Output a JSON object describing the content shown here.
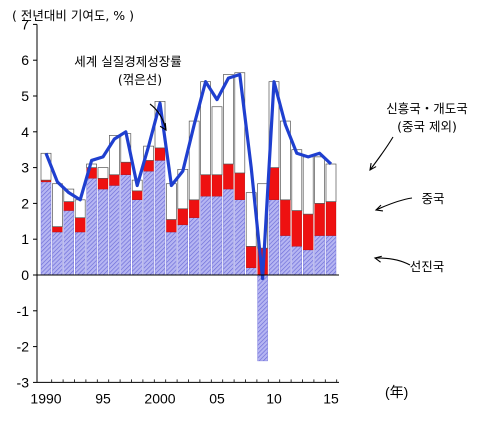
{
  "chart_data": {
    "type": "bar",
    "title": "",
    "unit_label": "( 전년대비 기여도, % )",
    "year_suffix": "(年)",
    "ylim": [
      -3,
      7
    ],
    "yticks": [
      -3,
      -2,
      -1,
      0,
      1,
      2,
      3,
      4,
      5,
      6,
      7
    ],
    "x": [
      1990,
      1991,
      1992,
      1993,
      1994,
      1995,
      1996,
      1997,
      1998,
      1999,
      2000,
      2001,
      2002,
      2003,
      2004,
      2005,
      2006,
      2007,
      2008,
      2009,
      2010,
      2011,
      2012,
      2013,
      2014,
      2015
    ],
    "x_tick_labels": [
      {
        "year": 1990,
        "label": "1990"
      },
      {
        "year": 1995,
        "label": "95"
      },
      {
        "year": 2000,
        "label": "2000"
      },
      {
        "year": 2005,
        "label": "05"
      },
      {
        "year": 2010,
        "label": "10"
      },
      {
        "year": 2015,
        "label": "15"
      }
    ],
    "series": [
      {
        "name": "선진국",
        "type": "bar",
        "color": "#8f8fe6",
        "values": [
          2.6,
          1.2,
          1.8,
          1.2,
          2.7,
          2.4,
          2.5,
          2.8,
          2.1,
          2.9,
          3.2,
          1.2,
          1.4,
          1.6,
          2.2,
          2.2,
          2.4,
          2.1,
          0.2,
          -2.4,
          2.1,
          1.1,
          0.8,
          0.7,
          1.1,
          1.1
        ]
      },
      {
        "name": "중국",
        "type": "bar",
        "color": "#ee1111",
        "values": [
          0.05,
          0.15,
          0.25,
          0.4,
          0.3,
          0.3,
          0.3,
          0.35,
          0.25,
          0.3,
          0.35,
          0.35,
          0.45,
          0.5,
          0.6,
          0.6,
          0.7,
          0.75,
          0.6,
          0.75,
          0.9,
          1.0,
          1.0,
          1.0,
          0.9,
          0.95
        ]
      },
      {
        "name": "신흥국・개도국 (중국 제외)",
        "type": "bar",
        "color": "#ffffff",
        "values": [
          0.75,
          1.2,
          0.35,
          0.5,
          0.1,
          0.3,
          1.1,
          0.8,
          0.3,
          0.4,
          1.3,
          1.0,
          1.1,
          2.2,
          2.6,
          1.9,
          2.5,
          2.8,
          1.5,
          1.8,
          2.4,
          2.2,
          1.7,
          1.6,
          1.3,
          1.05
        ]
      },
      {
        "name": "세계 실질경제성장률 (꺾은선)",
        "type": "line",
        "color": "#1f3fcf",
        "values": [
          3.4,
          2.6,
          2.3,
          2.1,
          3.2,
          3.3,
          3.8,
          4.0,
          2.5,
          3.6,
          4.8,
          2.5,
          2.9,
          4.2,
          5.4,
          4.9,
          5.5,
          5.6,
          3.0,
          -0.1,
          5.4,
          4.2,
          3.4,
          3.3,
          3.4,
          3.1
        ]
      }
    ],
    "annotations": {
      "world": [
        "세계 실질경제성장률",
        "(꺾은선)"
      ],
      "emerging": [
        "신흥국・개도국",
        "(중국 제외)"
      ],
      "china": "중국",
      "advanced": "선진국"
    },
    "grid": false,
    "legend": "none"
  }
}
